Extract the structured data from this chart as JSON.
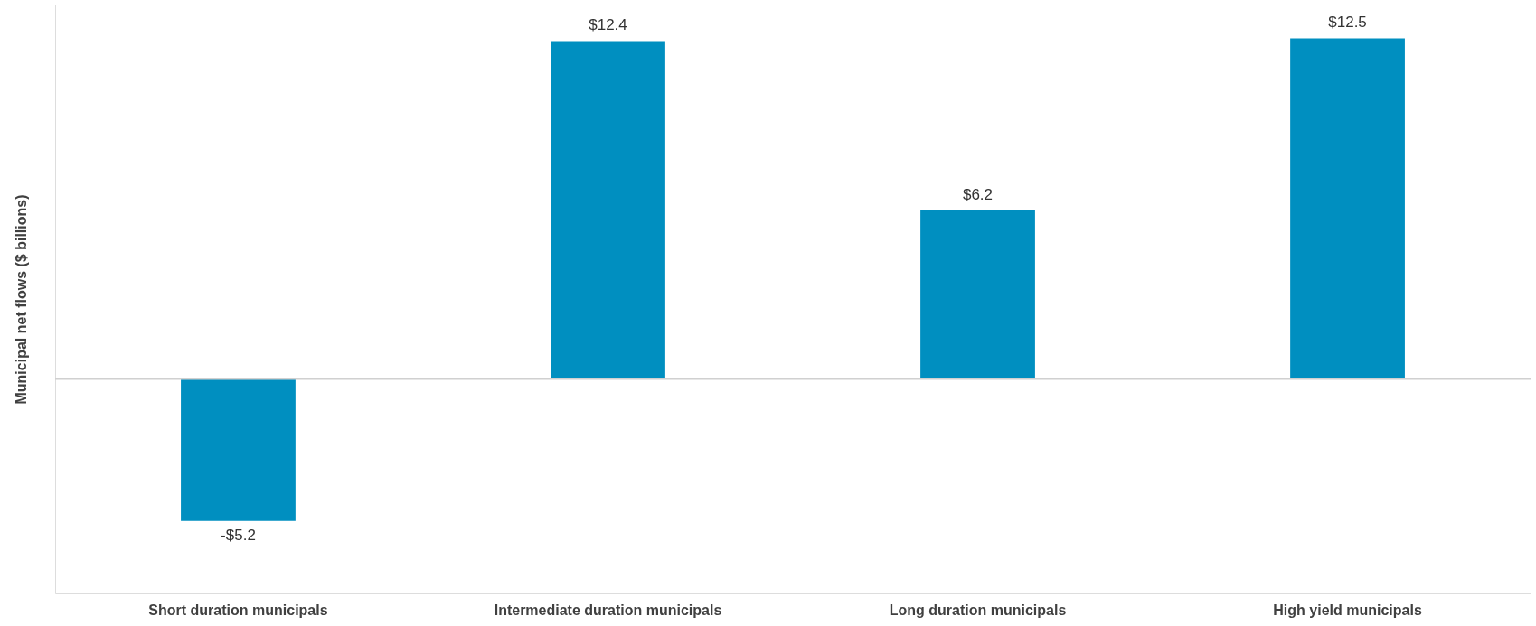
{
  "chart_data": {
    "type": "bar",
    "ylabel": "Municipal net flows ($ billions)",
    "categories": [
      "Short duration municipals",
      "Intermediate duration municipals",
      "Long duration municipals",
      "High yield municipals"
    ],
    "values": [
      -5.2,
      12.4,
      6.2,
      12.5
    ],
    "value_labels": [
      "-$5.2",
      "$12.4",
      "$6.2",
      "$12.5"
    ],
    "color": "#008fc0",
    "grid": false,
    "tick_labels": "x"
  }
}
